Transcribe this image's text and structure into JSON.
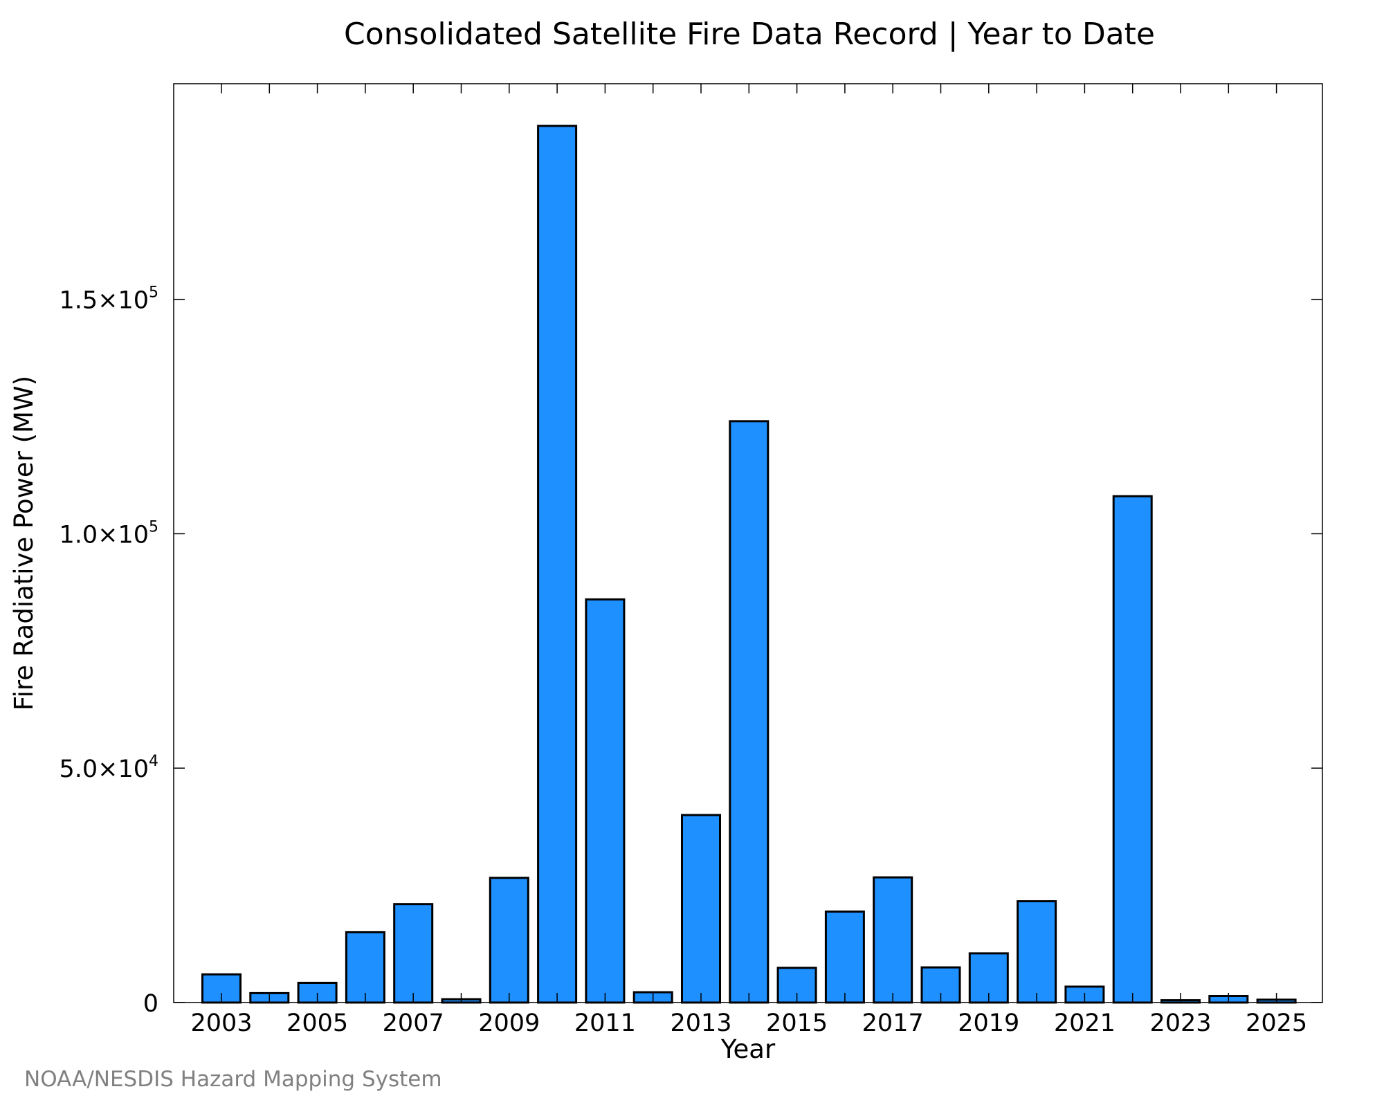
{
  "chart_data": {
    "type": "bar",
    "title": "Consolidated Satellite Fire Data Record | Year to Date",
    "xlabel": "Year",
    "ylabel": "Fire Radiative Power (MW)",
    "ylim": [
      0,
      196000
    ],
    "categories": [
      2003,
      2004,
      2005,
      2006,
      2007,
      2008,
      2009,
      2010,
      2011,
      2012,
      2013,
      2014,
      2015,
      2016,
      2017,
      2018,
      2019,
      2020,
      2021,
      2022,
      2023,
      2024,
      2025
    ],
    "values": [
      6000,
      2000,
      4200,
      15000,
      21000,
      700,
      26600,
      187000,
      86000,
      2200,
      40000,
      124000,
      7400,
      19400,
      26700,
      7500,
      10500,
      21600,
      3400,
      108000,
      500,
      1400,
      600
    ],
    "x_tick_labels": [
      "2003",
      "2005",
      "2007",
      "2009",
      "2011",
      "2013",
      "2015",
      "2017",
      "2019",
      "2021",
      "2023",
      "2025"
    ],
    "y_ticks": [
      {
        "value": 0,
        "mantissa": "0",
        "exponent": ""
      },
      {
        "value": 50000,
        "mantissa": "5.0×10",
        "exponent": "4"
      },
      {
        "value": 100000,
        "mantissa": "1.0×10",
        "exponent": "5"
      },
      {
        "value": 150000,
        "mantissa": "1.5×10",
        "exponent": "5"
      }
    ],
    "grid": false,
    "bar_color": "#1e90ff"
  },
  "credit": "NOAA/NESDIS Hazard Mapping System"
}
